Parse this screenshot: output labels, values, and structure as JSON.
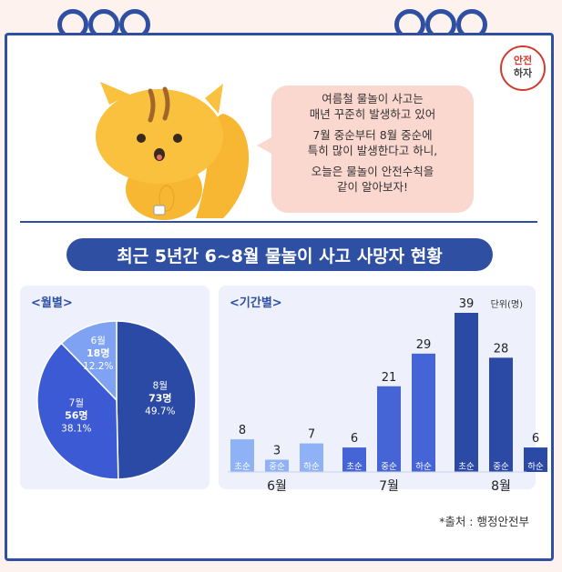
{
  "logo_text": [
    "안전",
    "하자"
  ],
  "bubble": {
    "lines": [
      [
        "여름철 물놀이 사고는",
        "매년 꾸준히 발생하고 있어"
      ],
      [
        "7월 중순부터 8월 중순에",
        "특히 많이 발생한다고 하니,"
      ],
      [
        "오늘은 물놀이 안전수칙을",
        "같이 알아보자!"
      ]
    ]
  },
  "banner_title": "최근 5년간 6~8월 물놀이 사고 사망자 현황",
  "source": "*출처 : 행정안전부",
  "colors": {
    "navy": "#2f4fa3",
    "pie_8": "#2b4aa5",
    "pie_7": "#3b5ad3",
    "pie_6": "#7fa3f2",
    "bar_6": "#8fb1f5",
    "bar_7": "#4565d6",
    "bar_8": "#2b4aa5"
  },
  "chart_data": [
    {
      "type": "pie",
      "title": "<월별>",
      "slices": [
        {
          "label": "8월",
          "value": 73,
          "value_label": "73명",
          "percent": "49.7%"
        },
        {
          "label": "7월",
          "value": 56,
          "value_label": "56명",
          "percent": "38.1%"
        },
        {
          "label": "6월",
          "value": 18,
          "value_label": "18명",
          "percent": "12.2%"
        }
      ]
    },
    {
      "type": "bar",
      "title": "<기간별>",
      "unit": "단위(명)",
      "groups": [
        {
          "month": "6월",
          "bars": [
            {
              "label": "초순",
              "value": 8
            },
            {
              "label": "중순",
              "value": 3
            },
            {
              "label": "하순",
              "value": 7
            }
          ]
        },
        {
          "month": "7월",
          "bars": [
            {
              "label": "초순",
              "value": 6
            },
            {
              "label": "중순",
              "value": 21
            },
            {
              "label": "하순",
              "value": 29
            }
          ]
        },
        {
          "month": "8월",
          "bars": [
            {
              "label": "초순",
              "value": 39
            },
            {
              "label": "중순",
              "value": 28
            },
            {
              "label": "하순",
              "value": 6
            }
          ]
        }
      ]
    }
  ]
}
